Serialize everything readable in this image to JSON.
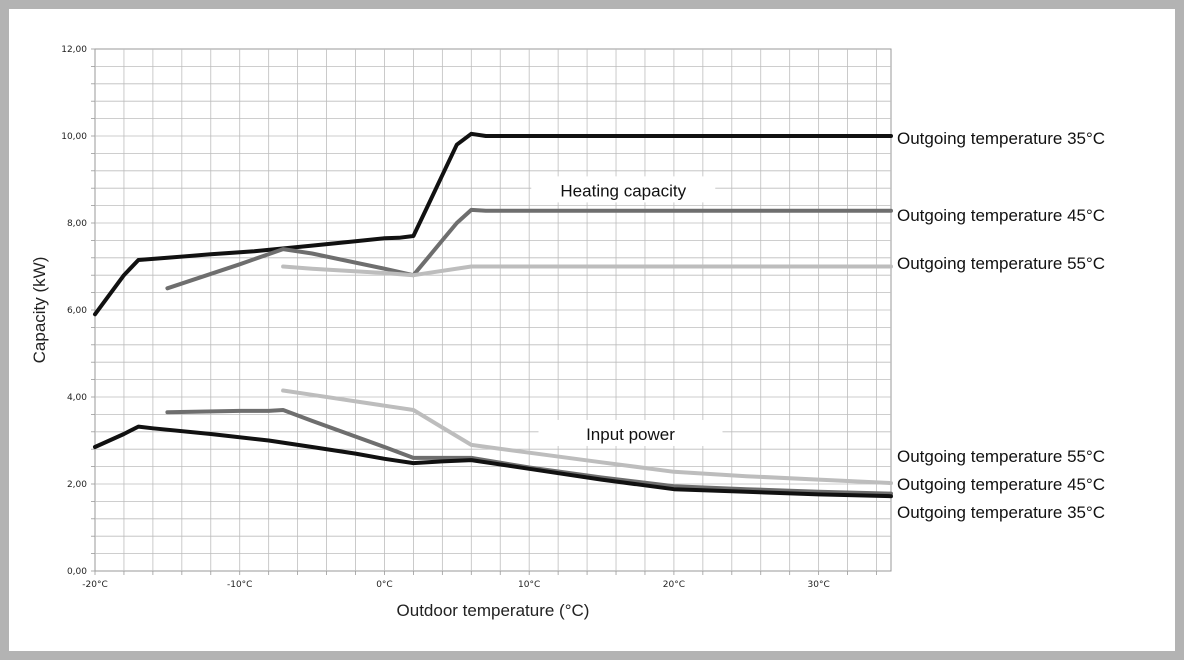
{
  "chart_data": {
    "type": "line",
    "title": "",
    "xlabel": "Outdoor temperature (°C)",
    "ylabel": "Capacity (kW)",
    "xlim": [
      -20,
      35
    ],
    "ylim": [
      0,
      12
    ],
    "grid": true,
    "x_ticks": [
      -20,
      -10,
      0,
      10,
      20,
      30
    ],
    "x_tick_labels": [
      "-20°C",
      "-10°C",
      "0°C",
      "10°C",
      "20°C",
      "30°C"
    ],
    "y_ticks": [
      0,
      2,
      4,
      6,
      8,
      10,
      12
    ],
    "y_tick_labels": [
      "0,00",
      "2,00",
      "4,00",
      "6,00",
      "8,00",
      "10,00",
      "12,00"
    ],
    "annotations": [
      {
        "text": "Heating capacity",
        "x": 16.5,
        "y": 8.75
      },
      {
        "text": "Input power",
        "x": 17,
        "y": 3.15
      }
    ],
    "series": [
      {
        "name": "Outgoing temperature 35°C",
        "group": "Heating capacity",
        "color": "#111111",
        "x": [
          -20,
          -18,
          -17,
          -15,
          -12,
          -9,
          -5,
          -2,
          0,
          1,
          2,
          3,
          4,
          5,
          6,
          7,
          10,
          35
        ],
        "y": [
          5.9,
          6.8,
          7.15,
          7.2,
          7.28,
          7.35,
          7.48,
          7.58,
          7.65,
          7.66,
          7.7,
          8.4,
          9.1,
          9.8,
          10.05,
          10.0,
          10.0,
          10.0
        ]
      },
      {
        "name": "Outgoing temperature 45°C",
        "group": "Heating capacity",
        "color": "#6e6e6e",
        "x": [
          -15,
          -10,
          -7,
          -5,
          0,
          2,
          3,
          4,
          5,
          6,
          7,
          10,
          35
        ],
        "y": [
          6.5,
          7.05,
          7.4,
          7.3,
          6.95,
          6.8,
          7.2,
          7.6,
          8.0,
          8.3,
          8.28,
          8.28,
          8.28
        ]
      },
      {
        "name": "Outgoing temperature 55°C",
        "group": "Heating capacity",
        "color": "#bdbdbd",
        "x": [
          -7,
          -5,
          0,
          2,
          6,
          10,
          35
        ],
        "y": [
          7.0,
          6.95,
          6.85,
          6.8,
          7.0,
          7.0,
          7.0
        ]
      },
      {
        "name": "Outgoing temperature 55°C",
        "group": "Input power",
        "color": "#bdbdbd",
        "x": [
          -7,
          -5,
          0,
          2,
          4,
          6,
          10,
          15,
          20,
          25,
          30,
          35
        ],
        "y": [
          4.15,
          4.05,
          3.8,
          3.7,
          3.3,
          2.9,
          2.72,
          2.5,
          2.28,
          2.18,
          2.1,
          2.02
        ]
      },
      {
        "name": "Outgoing temperature 45°C",
        "group": "Input power",
        "color": "#6e6e6e",
        "x": [
          -15,
          -10,
          -8,
          -7,
          -5,
          0,
          2,
          6,
          10,
          15,
          20,
          25,
          30,
          35
        ],
        "y": [
          3.65,
          3.68,
          3.68,
          3.7,
          3.45,
          2.85,
          2.6,
          2.6,
          2.38,
          2.15,
          1.95,
          1.88,
          1.82,
          1.78
        ]
      },
      {
        "name": "Outgoing temperature 35°C",
        "group": "Input power",
        "color": "#111111",
        "x": [
          -20,
          -18,
          -17,
          -16,
          -12,
          -8,
          -5,
          -2,
          0,
          2,
          4,
          6,
          10,
          15,
          20,
          25,
          30,
          35
        ],
        "y": [
          2.85,
          3.15,
          3.32,
          3.28,
          3.15,
          3.0,
          2.85,
          2.7,
          2.58,
          2.48,
          2.52,
          2.55,
          2.35,
          2.1,
          1.88,
          1.82,
          1.76,
          1.72
        ]
      }
    ],
    "end_labels": [
      {
        "text": "Outgoing temperature 35°C",
        "color": "#111111"
      },
      {
        "text": "Outgoing temperature 45°C",
        "color": "#6e6e6e"
      },
      {
        "text": "Outgoing temperature 55°C",
        "color": "#bdbdbd"
      },
      {
        "text": "Outgoing temperature 55°C",
        "color": "#bdbdbd"
      },
      {
        "text": "Outgoing temperature 45°C",
        "color": "#6e6e6e"
      },
      {
        "text": "Outgoing temperature 35°C",
        "color": "#111111"
      }
    ]
  }
}
